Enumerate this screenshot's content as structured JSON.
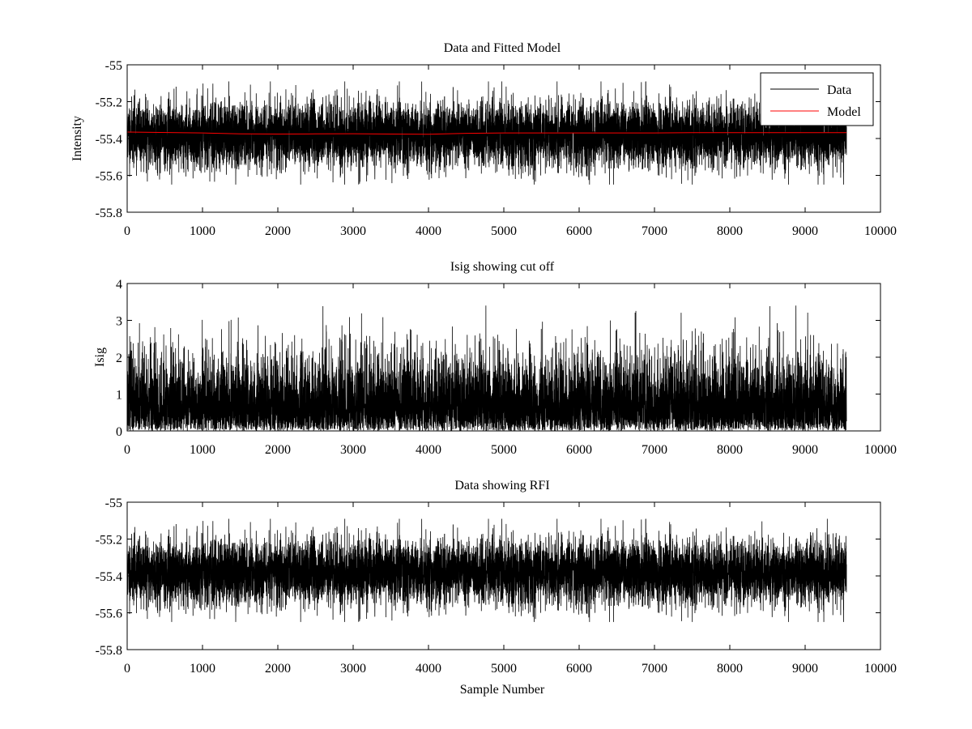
{
  "chart_data": [
    {
      "type": "line",
      "title": "Data and Fitted Model",
      "xlabel": "",
      "ylabel": "Intensity",
      "xlim": [
        0,
        10000
      ],
      "ylim": [
        -55.8,
        -55
      ],
      "xticks": [
        0,
        1000,
        2000,
        3000,
        4000,
        5000,
        6000,
        7000,
        8000,
        9000,
        10000
      ],
      "yticks": [
        -55.8,
        -55.6,
        -55.4,
        -55.2,
        -55
      ],
      "ytick_labels": [
        "-55.8",
        "-55.6",
        "-55.4",
        "-55.2",
        "-55"
      ],
      "legend": {
        "position": "top-right",
        "entries": [
          "Data",
          "Model"
        ]
      },
      "series": [
        {
          "name": "Data",
          "color": "#000000",
          "kind": "noise",
          "n_samples": 9550,
          "center": -55.38,
          "spread": 0.09,
          "min": -55.65,
          "max": -55.09,
          "seed": 11
        },
        {
          "name": "Model",
          "color": "#ff0000",
          "kind": "line",
          "x": [
            0,
            1000,
            1500,
            2000,
            2500,
            3000,
            3500,
            4000,
            4500,
            5000,
            6000,
            7000,
            7500,
            8000,
            9000,
            9550
          ],
          "values": [
            -55.365,
            -55.37,
            -55.375,
            -55.376,
            -55.375,
            -55.374,
            -55.376,
            -55.377,
            -55.372,
            -55.37,
            -55.37,
            -55.37,
            -55.368,
            -55.368,
            -55.368,
            -55.368
          ]
        }
      ]
    },
    {
      "type": "line",
      "title": "Isig showing cut off",
      "xlabel": "",
      "ylabel": "Isig",
      "xlim": [
        0,
        10000
      ],
      "ylim": [
        0,
        4
      ],
      "xticks": [
        0,
        1000,
        2000,
        3000,
        4000,
        5000,
        6000,
        7000,
        8000,
        9000,
        10000
      ],
      "yticks": [
        0,
        1,
        2,
        3,
        4
      ],
      "ytick_labels": [
        "0",
        "1",
        "2",
        "3",
        "4"
      ],
      "series": [
        {
          "name": "Isig",
          "color": "#000000",
          "kind": "noise_abs",
          "n_samples": 9550,
          "center": 0,
          "spread": 0.95,
          "min": 0,
          "max": 3.4,
          "seed": 23
        }
      ]
    },
    {
      "type": "line",
      "title": "Data showing RFI",
      "xlabel": "Sample Number",
      "ylabel": "",
      "xlim": [
        0,
        10000
      ],
      "ylim": [
        -55.8,
        -55
      ],
      "xticks": [
        0,
        1000,
        2000,
        3000,
        4000,
        5000,
        6000,
        7000,
        8000,
        9000,
        10000
      ],
      "yticks": [
        -55.8,
        -55.6,
        -55.4,
        -55.2,
        -55
      ],
      "ytick_labels": [
        "-55.8",
        "-55.6",
        "-55.4",
        "-55.2",
        "-55"
      ],
      "series": [
        {
          "name": "Data",
          "color": "#000000",
          "kind": "noise",
          "n_samples": 9550,
          "center": -55.38,
          "spread": 0.09,
          "min": -55.65,
          "max": -55.09,
          "seed": 11
        }
      ]
    }
  ]
}
